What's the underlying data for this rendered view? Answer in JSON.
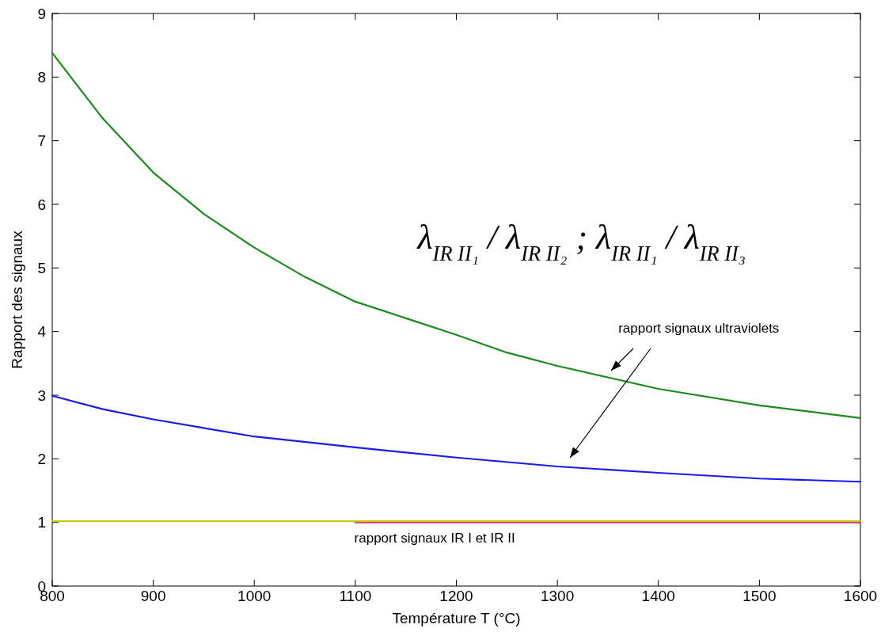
{
  "chart_data": {
    "type": "line",
    "xlabel": "Température T (°C)",
    "ylabel": "Rapport des signaux",
    "xlim": [
      800,
      1600
    ],
    "xticks": [
      800,
      900,
      1000,
      1100,
      1200,
      1300,
      1400,
      1500,
      1600
    ],
    "ylim": [
      0,
      9
    ],
    "yticks": [
      0,
      1,
      2,
      3,
      4,
      5,
      6,
      7,
      8,
      9
    ],
    "grid": false,
    "line_style": "solid",
    "series": [
      {
        "color": "#1a8a1a",
        "x": [
          800,
          850,
          900,
          950,
          1000,
          1050,
          1100,
          1200,
          1250,
          1300,
          1350,
          1400,
          1500,
          1600
        ],
        "values": [
          8.38,
          7.35,
          6.5,
          5.85,
          5.32,
          4.86,
          4.47,
          3.95,
          3.67,
          3.46,
          3.28,
          3.1,
          2.84,
          2.64
        ]
      },
      {
        "color": "#1a1aee",
        "x": [
          800,
          850,
          900,
          1000,
          1100,
          1200,
          1300,
          1400,
          1500,
          1600
        ],
        "values": [
          2.99,
          2.78,
          2.62,
          2.35,
          2.18,
          2.02,
          1.88,
          1.78,
          1.69,
          1.64
        ]
      },
      {
        "color": "#e0206a",
        "x": [
          1100,
          1600
        ],
        "values": [
          1.0,
          1.0
        ]
      },
      {
        "color": "#c8c810",
        "x": [
          800,
          1600
        ],
        "values": [
          1.02,
          1.02
        ]
      }
    ],
    "annotations": [
      "λ$_{IR II₁}$ / λ$_{IR II₂}$ ; λ$_{IR II₁}$ / λ$_{IR II₃}$",
      "rapport signaux ultraviolets",
      "rapport signaux IR I et IR II"
    ]
  }
}
